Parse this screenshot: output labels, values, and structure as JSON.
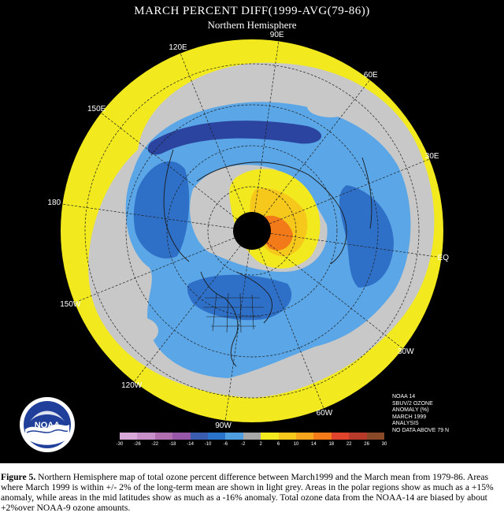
{
  "title": "MARCH PERCENT DIFF(1999-AVG(79-86))",
  "subtitle": "Northern Hemisphere",
  "longitude_labels": [
    {
      "label": "90E",
      "angle": 90
    },
    {
      "label": "60E",
      "angle": 60
    },
    {
      "label": "30E",
      "angle": 30
    },
    {
      "label": "EQ",
      "angle": 0
    },
    {
      "label": "30W",
      "angle": -30
    },
    {
      "label": "60W",
      "angle": -60
    },
    {
      "label": "90W",
      "angle": -90
    },
    {
      "label": "120W",
      "angle": -120
    },
    {
      "label": "150W",
      "angle": -150
    },
    {
      "label": "180",
      "angle": 180
    },
    {
      "label": "150E",
      "angle": 150
    },
    {
      "label": "120E",
      "angle": 120
    }
  ],
  "info_block": [
    "NOAA 14",
    "SBUV/2 OZONE",
    "ANOMALY (%)",
    "MARCH 1999",
    "ANALYSIS",
    "NO DATA ABOVE 79 N"
  ],
  "colorbar": {
    "ticks": [
      "-30",
      "-26",
      "-22",
      "-18",
      "-14",
      "-10",
      "-6",
      "-2",
      "2",
      "6",
      "10",
      "14",
      "18",
      "22",
      "26",
      "30"
    ],
    "colors": [
      "#d8a8d8",
      "#c890c8",
      "#b070b0",
      "#9858a8",
      "#3c5cb0",
      "#2a74cc",
      "#4e9ee0",
      "#a8a8a8",
      "#f2ea1e",
      "#f6c81c",
      "#f6a61c",
      "#f27a18",
      "#e0442c",
      "#b83a2a",
      "#8a4a2a"
    ]
  },
  "colors": {
    "panel_background": "#000000",
    "no_change_grey": "#c8c8c8",
    "positive_yellow": "#f2ea1e",
    "negative_light_blue": "#5aa6e6",
    "negative_blue": "#2e70c8",
    "negative_dark_blue": "#2a44a0",
    "positive_orange": "#f6a61c"
  },
  "logo": {
    "text": "NOAA",
    "icon": "noaa-logo-icon"
  },
  "caption": {
    "label": "Figure 5.",
    "text": " Northern Hemisphere map of total ozone percent difference between March1999 and the March mean from 1979-86.  Areas where March 1999 is within +/- 2% of the long-term mean are shown in light grey.  Areas in the polar regions show as much as a +15% anomaly, while areas in the mid latitudes show as much as a -16% anomaly.  Total ozone data from the NOAA-14 are biased by about +2%over NOAA-9 ozone amounts."
  }
}
